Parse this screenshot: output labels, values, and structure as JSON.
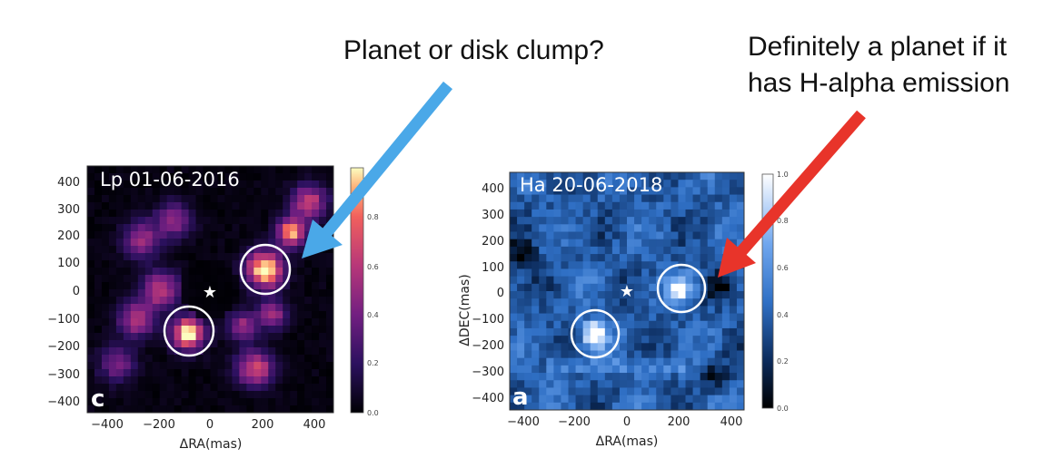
{
  "annotations": {
    "left_caption": "Planet or disk clump?",
    "right_caption": "Definitely a planet if it\nhas H-alpha emission",
    "left_arrow_color": "#4AA8E8",
    "right_arrow_color": "#E8342A"
  },
  "panels": [
    {
      "label": "Lp 01-06-2016",
      "letter": "c",
      "xlabel": "ΔRA(mas)",
      "ylabel": "",
      "colormap": "magma",
      "x_ticks": [
        "−400",
        "−200",
        "0",
        "200",
        "400"
      ],
      "y_ticks": [
        "400",
        "300",
        "200",
        "100",
        "0",
        "−100",
        "−200",
        "−300",
        "−400"
      ],
      "colorbar_ticks": [
        "0.0",
        "0.2",
        "0.4",
        "0.6",
        "0.8"
      ],
      "star_marker": "star-icon",
      "circled_sources": [
        {
          "ra": 200,
          "dec": 80
        },
        {
          "ra": -80,
          "dec": -150
        }
      ]
    },
    {
      "label": "Ha 20-06-2018",
      "letter": "a",
      "xlabel": "ΔRA(mas)",
      "ylabel": "ΔDEC(mas)",
      "colormap": "blues",
      "x_ticks": [
        "−400",
        "−200",
        "0",
        "200",
        "400"
      ],
      "y_ticks": [
        "400",
        "300",
        "200",
        "100",
        "0",
        "−100",
        "−200",
        "−300",
        "−400"
      ],
      "colorbar_ticks": [
        "1.0",
        "0.8",
        "0.6",
        "0.4",
        "0.2",
        "0.0"
      ],
      "star_marker": "star-icon",
      "circled_sources": [
        {
          "ra": 210,
          "dec": 10
        },
        {
          "ra": -130,
          "dec": -160
        }
      ]
    }
  ]
}
